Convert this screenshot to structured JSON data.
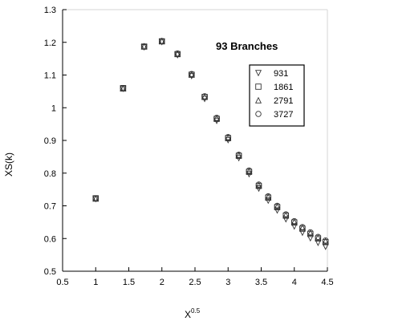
{
  "chart_data": {
    "type": "scatter",
    "title": "",
    "annotation": "93 Branches",
    "xlabel": "X",
    "xlabel_superscript": "0.5",
    "ylabel": "XS(k)",
    "xlim": [
      0.5,
      4.5
    ],
    "ylim": [
      0.5,
      1.3
    ],
    "xticks": [
      "0.5",
      "1",
      "1.5",
      "2",
      "2.5",
      "3",
      "3.5",
      "4",
      "4.5"
    ],
    "yticks": [
      "0.5",
      "0.6",
      "0.7",
      "0.8",
      "0.9",
      "1",
      "1.1",
      "1.2",
      "1.3"
    ],
    "grid": false,
    "legend_position": "right",
    "x": [
      1.0,
      1.414,
      1.732,
      2.0,
      2.236,
      2.449,
      2.646,
      2.828,
      3.0,
      3.162,
      3.317,
      3.464,
      3.606,
      3.742,
      3.873,
      4.0,
      4.123,
      4.243,
      4.359,
      4.472
    ],
    "series": [
      {
        "name": "931",
        "marker": "triangle-down",
        "values": [
          0.721,
          1.058,
          1.185,
          1.201,
          1.161,
          1.097,
          1.027,
          0.96,
          0.901,
          0.846,
          0.797,
          0.753,
          0.716,
          0.686,
          0.659,
          0.637,
          0.618,
          0.601,
          0.587,
          0.575
        ]
      },
      {
        "name": "1861",
        "marker": "square",
        "values": [
          0.723,
          1.06,
          1.187,
          1.203,
          1.164,
          1.101,
          1.033,
          0.966,
          0.907,
          0.853,
          0.804,
          0.761,
          0.725,
          0.696,
          0.67,
          0.649,
          0.63,
          0.614,
          0.6,
          0.589
        ]
      },
      {
        "name": "2791",
        "marker": "triangle-up",
        "values": [
          0.722,
          1.059,
          1.188,
          1.204,
          1.165,
          1.102,
          1.034,
          0.968,
          0.909,
          0.855,
          0.806,
          0.763,
          0.727,
          0.698,
          0.672,
          0.651,
          0.633,
          0.617,
          0.603,
          0.592
        ]
      },
      {
        "name": "3727",
        "marker": "circle",
        "values": [
          0.723,
          1.06,
          1.187,
          1.204,
          1.166,
          1.103,
          1.035,
          0.969,
          0.91,
          0.856,
          0.808,
          0.765,
          0.729,
          0.7,
          0.674,
          0.653,
          0.635,
          0.619,
          0.605,
          0.594
        ]
      }
    ]
  }
}
